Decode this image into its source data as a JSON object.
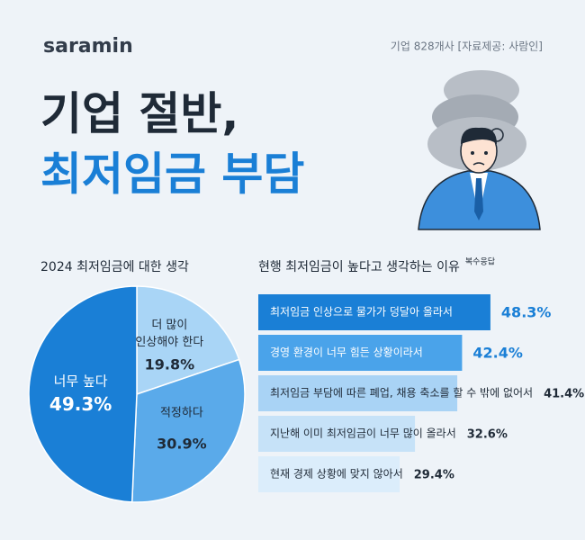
{
  "header": {
    "logo": "saramin",
    "source": "기업 828개사 [자료제공: 사람인]",
    "title_line1": "기업 절반,",
    "title_line2": "최저임금 부담"
  },
  "chart_data": [
    {
      "type": "pie",
      "title": "2024 최저임금에 대한 생각",
      "categories": [
        "더 많이 인상해야 한다",
        "적정하다",
        "너무 높다"
      ],
      "values": [
        19.8,
        30.9,
        49.3
      ],
      "value_labels": [
        "19.8%",
        "30.9%",
        "49.3%"
      ],
      "colors": [
        "#a9d5f6",
        "#5aaaea",
        "#1a7fd6"
      ]
    },
    {
      "type": "hbar",
      "title": "현행 최저임금이 높다고 생각하는 이유",
      "subtitle": "복수응답",
      "categories": [
        "최저임금 인상으로 물가가 덩달아 올라서",
        "경영 환경이 너무 힘든 상황이라서",
        "최저임금 부담에 따른 폐업, 채용 축소를 할 수 밖에 없어서",
        "지난해 이미 최저임금이 너무 많이 올라서",
        "현재 경제 상황에 맞지 않아서"
      ],
      "values": [
        48.3,
        42.4,
        41.4,
        32.6,
        29.4
      ],
      "value_labels": [
        "48.3%",
        "42.4%",
        "41.4%",
        "32.6%",
        "29.4%"
      ],
      "colors": [
        "#1a7fd6",
        "#4aa3ea",
        "#a9d3f5",
        "#c6e2f8",
        "#dbedfb"
      ]
    }
  ]
}
